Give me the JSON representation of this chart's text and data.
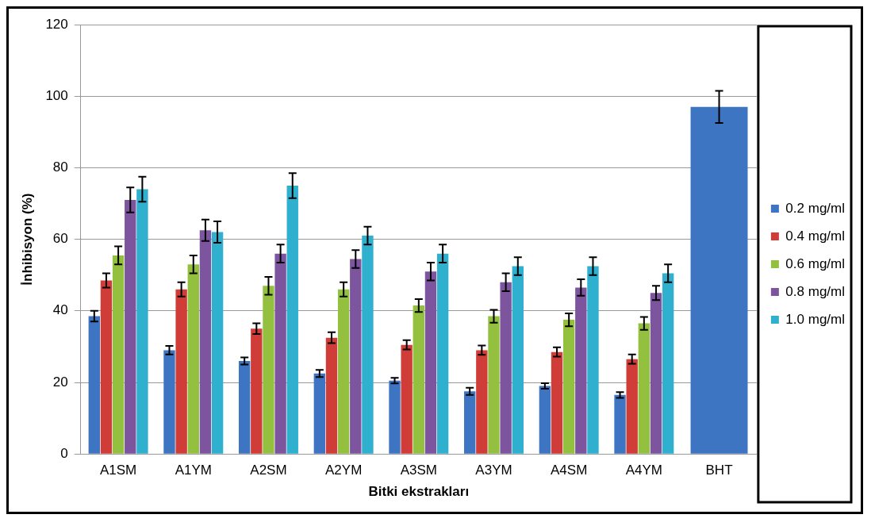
{
  "chart_data": {
    "type": "bar",
    "xlabel": "Bitki ekstrakları",
    "ylabel": "İnhibisyon (%)",
    "categories": [
      "A1SM",
      "A1YM",
      "A2SM",
      "A2YM",
      "A3SM",
      "A3YM",
      "A4SM",
      "A4YM",
      "BHT"
    ],
    "series": [
      {
        "name": "0.2 mg/ml",
        "color": "#3d75c2",
        "values": [
          38.5,
          29,
          26,
          22.5,
          20.5,
          17.5,
          19,
          16.5,
          97
        ],
        "errors": [
          1.5,
          1.2,
          1,
          1,
          0.8,
          1,
          0.8,
          0.8,
          4.5
        ]
      },
      {
        "name": "0.4 mg/ml",
        "color": "#d03c38",
        "values": [
          48.5,
          46,
          35,
          32.5,
          30.5,
          29,
          28.5,
          26.5,
          null
        ],
        "errors": [
          2,
          2,
          1.5,
          1.5,
          1.3,
          1.3,
          1.3,
          1.3,
          null
        ]
      },
      {
        "name": "0.6 mg/ml",
        "color": "#94c040",
        "values": [
          55.5,
          53,
          47,
          46,
          41.5,
          38.5,
          37.5,
          36.5,
          null
        ],
        "errors": [
          2.5,
          2.5,
          2.5,
          2,
          1.8,
          1.8,
          1.8,
          1.8,
          null
        ]
      },
      {
        "name": "0.8 mg/ml",
        "color": "#7d559f",
        "values": [
          71,
          62.5,
          56,
          54.5,
          51,
          48,
          46.5,
          45,
          null
        ],
        "errors": [
          3.5,
          3,
          2.5,
          2.5,
          2.5,
          2.5,
          2.3,
          2,
          null
        ]
      },
      {
        "name": "1.0 mg/ml",
        "color": "#2fb0cf",
        "values": [
          74,
          62,
          75,
          61,
          56,
          52.5,
          52.5,
          50.5,
          null
        ],
        "errors": [
          3.5,
          3,
          3.5,
          2.5,
          2.5,
          2.5,
          2.5,
          2.5,
          null
        ]
      }
    ],
    "ylim": [
      0,
      120
    ],
    "yticks": [
      0,
      20,
      40,
      60,
      80,
      100,
      120
    ],
    "grid": "y",
    "legend": "right"
  }
}
